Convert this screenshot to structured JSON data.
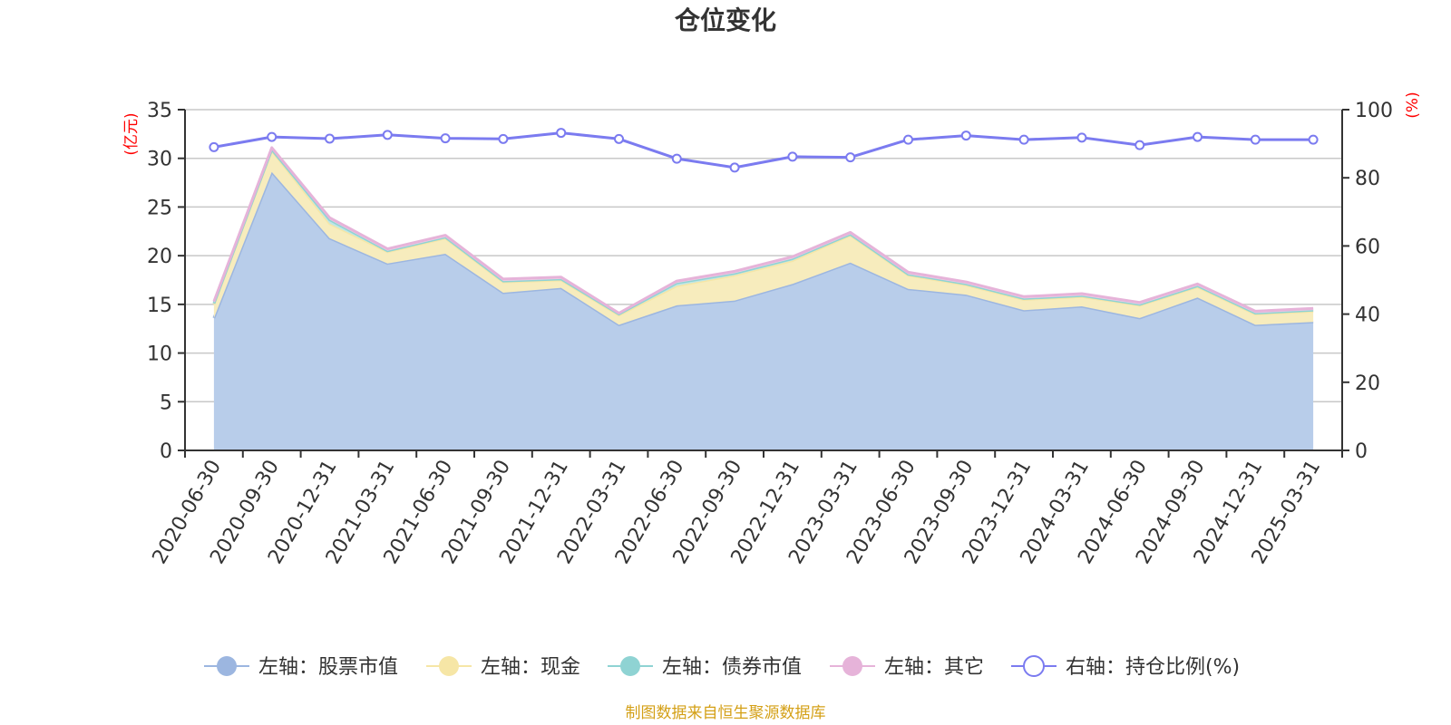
{
  "chart_data": {
    "type": "area",
    "title": "仓位变化",
    "source": "制图数据来自恒生聚源数据库",
    "categories": [
      "2020-06-30",
      "2020-09-30",
      "2020-12-31",
      "2021-03-31",
      "2021-06-30",
      "2021-09-30",
      "2021-12-31",
      "2022-03-31",
      "2022-06-30",
      "2022-09-30",
      "2022-12-31",
      "2023-03-31",
      "2023-06-30",
      "2023-09-30",
      "2023-12-31",
      "2024-03-31",
      "2024-06-30",
      "2024-09-30",
      "2024-12-31",
      "2025-03-31"
    ],
    "left_axis": {
      "unit": "(亿元)",
      "ylim": [
        0,
        35
      ],
      "ticks": [
        0,
        5,
        10,
        15,
        20,
        25,
        30,
        35
      ]
    },
    "right_axis": {
      "unit": "(%)",
      "ylim": [
        0,
        100
      ],
      "ticks": [
        0,
        20,
        40,
        60,
        80,
        100
      ]
    },
    "legend_position": "bottom",
    "grid": true,
    "series": [
      {
        "name": "左轴：股票市值",
        "axis": "left",
        "stacked": true,
        "color": "#9cb6e0",
        "fill": "#b8cdea",
        "values": [
          13.6,
          28.6,
          21.8,
          19.2,
          20.2,
          16.2,
          16.7,
          12.9,
          14.9,
          15.4,
          17.1,
          19.3,
          16.6,
          16.0,
          14.4,
          14.8,
          13.6,
          15.7,
          12.9,
          13.2
        ]
      },
      {
        "name": "左轴：现金",
        "axis": "left",
        "stacked": true,
        "color": "#f6e6a6",
        "fill": "#f7ecbd",
        "values": [
          1.4,
          2.2,
          1.5,
          1.2,
          1.6,
          1.1,
          0.8,
          1.0,
          2.0,
          2.6,
          2.4,
          2.8,
          1.4,
          1.0,
          1.1,
          1.0,
          1.3,
          1.1,
          1.1,
          1.1
        ]
      },
      {
        "name": "左轴：债券市值",
        "axis": "left",
        "stacked": true,
        "color": "#8fd3d3",
        "fill": "#bfe6e6",
        "values": [
          0.1,
          0.1,
          0.4,
          0.1,
          0.1,
          0.1,
          0.1,
          0.1,
          0.3,
          0.2,
          0.2,
          0.1,
          0.1,
          0.1,
          0.1,
          0.1,
          0.1,
          0.1,
          0.1,
          0.1
        ]
      },
      {
        "name": "左轴：其它",
        "axis": "left",
        "stacked": true,
        "color": "#e6b3d9",
        "fill": "#efcfe6",
        "values": [
          0.2,
          0.2,
          0.2,
          0.2,
          0.2,
          0.2,
          0.2,
          0.1,
          0.2,
          0.2,
          0.2,
          0.2,
          0.2,
          0.2,
          0.2,
          0.2,
          0.2,
          0.2,
          0.2,
          0.2
        ]
      },
      {
        "name": "右轴：持仓比例(%)",
        "axis": "right",
        "stacked": false,
        "color": "#7b7bf0",
        "values": [
          89.0,
          92.0,
          91.5,
          92.6,
          91.6,
          91.4,
          93.2,
          91.4,
          85.6,
          83.0,
          86.2,
          86.0,
          91.2,
          92.4,
          91.2,
          91.8,
          89.6,
          92.0,
          91.2,
          91.2
        ]
      }
    ]
  }
}
